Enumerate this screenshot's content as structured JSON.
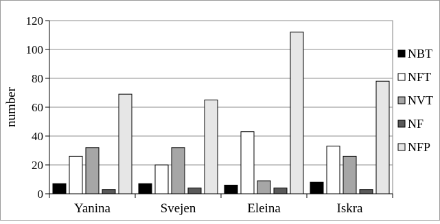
{
  "chart_data": {
    "type": "bar",
    "title": "",
    "xlabel": "",
    "ylabel": "number",
    "ylim": [
      0,
      120
    ],
    "yticks": [
      "0",
      "20",
      "40",
      "60",
      "80",
      "100",
      "120"
    ],
    "grid": true,
    "legend_position": "right",
    "categories": [
      "Yanina",
      "Svejen",
      "Eleina",
      "Iskra"
    ],
    "series": [
      {
        "name": "NBT",
        "color": "#000000",
        "values": [
          7,
          7,
          6,
          8
        ]
      },
      {
        "name": "NFT",
        "color": "#ffffff",
        "values": [
          26,
          20,
          43,
          33
        ]
      },
      {
        "name": "NVT",
        "color": "#a6a6a6",
        "values": [
          32,
          32,
          9,
          26
        ]
      },
      {
        "name": "NF",
        "color": "#595959",
        "values": [
          3,
          4,
          4,
          3
        ]
      },
      {
        "name": "NFP",
        "color": "#e6e6e6",
        "values": [
          69,
          65,
          112,
          78
        ]
      }
    ]
  }
}
